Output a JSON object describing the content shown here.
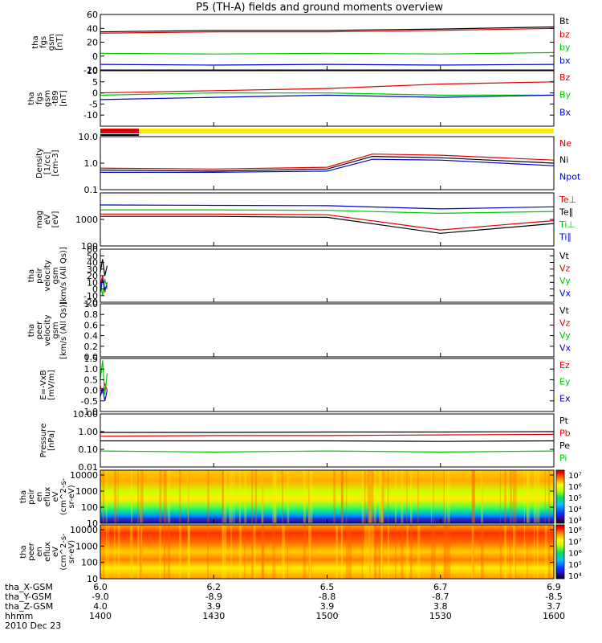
{
  "title": "P5 (TH-A) fields and ground moments overview",
  "footer": {
    "rows": [
      {
        "label": "tha_X-GSM",
        "values": [
          "6.0",
          "6.2",
          "6.5",
          "6.7",
          "6.9"
        ]
      },
      {
        "label": "tha_Y-GSM",
        "values": [
          "-9.0",
          "-8.9",
          "-8.8",
          "-8.7",
          "-8.5"
        ]
      },
      {
        "label": "tha_Z-GSM",
        "values": [
          "4.0",
          "3.9",
          "3.9",
          "3.8",
          "3.7"
        ]
      },
      {
        "label": "hhmm",
        "values": [
          "1400",
          "1430",
          "1500",
          "1530",
          "1600"
        ]
      }
    ],
    "date": "2010 Dec 23"
  },
  "colors": {
    "black": "#000000",
    "red": "#e00000",
    "green": "#00c800",
    "blue": "#0000d0",
    "yellow": "#ffee00"
  },
  "chart_data": [
    {
      "type": "line",
      "ylabel": [
        "tha",
        "fgs",
        "gsm",
        "[nT]"
      ],
      "ylim": [
        -20,
        60
      ],
      "yticks": [
        "60",
        "40",
        "20",
        "0",
        "-20"
      ],
      "legend": [
        "Bt",
        "bz",
        "by",
        "bx"
      ],
      "series": [
        {
          "name": "Bt",
          "color": "black",
          "x": [
            14.0,
            14.5,
            15.0,
            15.5,
            16.0
          ],
          "y": [
            35,
            37,
            37,
            39,
            42
          ]
        },
        {
          "name": "bz",
          "color": "red",
          "x": [
            14.0,
            14.5,
            15.0,
            15.5,
            16.0
          ],
          "y": [
            33,
            35,
            35,
            37,
            40
          ]
        },
        {
          "name": "by",
          "color": "green",
          "x": [
            14.0,
            14.5,
            15.0,
            15.5,
            16.0
          ],
          "y": [
            4,
            3,
            4,
            3,
            5
          ]
        },
        {
          "name": "bx",
          "color": "blue",
          "x": [
            14.0,
            14.5,
            15.0,
            15.5,
            16.0
          ],
          "y": [
            -12,
            -13,
            -12,
            -13,
            -12
          ]
        }
      ]
    },
    {
      "type": "line",
      "ylabel": [
        "tha",
        "fgs",
        "gsm",
        "-t89",
        "[nT]"
      ],
      "ylim": [
        -15,
        10
      ],
      "yticks": [
        "10",
        "5",
        "0",
        "-5",
        "-10"
      ],
      "legend": [
        "Bz",
        "By",
        "Bx"
      ],
      "series": [
        {
          "name": "Bz",
          "color": "red",
          "x": [
            14.0,
            14.5,
            15.0,
            15.5,
            16.0
          ],
          "y": [
            0,
            1,
            2,
            4,
            5
          ]
        },
        {
          "name": "By",
          "color": "green",
          "x": [
            14.0,
            14.5,
            15.0,
            15.5,
            16.0
          ],
          "y": [
            -1,
            0,
            0,
            -1,
            -1
          ]
        },
        {
          "name": "Bx",
          "color": "blue",
          "x": [
            14.0,
            14.5,
            15.0,
            15.5,
            16.0
          ],
          "y": [
            -3,
            -2,
            -1,
            -2,
            -1
          ]
        }
      ]
    },
    {
      "type": "line",
      "ylabel": [
        "Density",
        "[1/cc]",
        "[cm-3]"
      ],
      "yscale": "log",
      "ylim": [
        0.1,
        10
      ],
      "yticks": [
        "10.0",
        "1.0",
        "0.1"
      ],
      "legend": [
        "Ne",
        "Ni",
        "Npot"
      ],
      "series": [
        {
          "name": "Ne",
          "color": "red",
          "x": [
            14.0,
            14.5,
            15.0,
            15.2,
            15.5,
            16.0
          ],
          "y": [
            0.65,
            0.6,
            0.7,
            2.2,
            2.0,
            1.3
          ]
        },
        {
          "name": "Ni",
          "color": "black",
          "x": [
            14.0,
            14.5,
            15.0,
            15.2,
            15.5,
            16.0
          ],
          "y": [
            0.55,
            0.5,
            0.6,
            1.8,
            1.6,
            1.0
          ]
        },
        {
          "name": "Npot",
          "color": "blue",
          "x": [
            14.0,
            14.5,
            15.0,
            15.2,
            15.5,
            16.0
          ],
          "y": [
            0.45,
            0.45,
            0.5,
            1.4,
            1.3,
            0.8
          ]
        }
      ]
    },
    {
      "type": "line",
      "ylabel": [
        "mag",
        "eV",
        "[eV]"
      ],
      "yscale": "log",
      "ylim": [
        100,
        10000
      ],
      "yticks": [
        "1000",
        "100"
      ],
      "legend": [
        "Te⊥",
        "Te∥",
        "Ti⊥",
        "Ti∥"
      ],
      "series": [
        {
          "name": "Ti∥",
          "color": "blue",
          "x": [
            14.0,
            14.5,
            15.0,
            15.5,
            16.0
          ],
          "y": [
            3500,
            3400,
            3300,
            2500,
            3000
          ]
        },
        {
          "name": "Ti⊥",
          "color": "green",
          "x": [
            14.0,
            14.5,
            15.0,
            15.5,
            16.0
          ],
          "y": [
            2300,
            2300,
            2200,
            1700,
            2000
          ]
        },
        {
          "name": "Te⊥",
          "color": "red",
          "x": [
            14.0,
            14.5,
            15.0,
            15.5,
            16.0
          ],
          "y": [
            1600,
            1600,
            1500,
            400,
            900
          ]
        },
        {
          "name": "Te∥",
          "color": "black",
          "x": [
            14.0,
            14.5,
            15.0,
            15.5,
            16.0
          ],
          "y": [
            1300,
            1300,
            1200,
            300,
            700
          ]
        }
      ]
    },
    {
      "type": "line",
      "ylabel": [
        "tha",
        "peir",
        "velocity",
        "gsm",
        "[km/s (All Qs)]"
      ],
      "ylim": [
        -20,
        60
      ],
      "yticks": [
        "60",
        "50",
        "40",
        "30",
        "20",
        "10",
        "0",
        "-10",
        "-20"
      ],
      "legend": [
        "Vt",
        "Vz",
        "Vy",
        "Vx"
      ],
      "series": [
        {
          "name": "Vt",
          "color": "black",
          "x": [
            14.0,
            14.01,
            14.02,
            14.03
          ],
          "y": [
            25,
            45,
            20,
            35
          ]
        },
        {
          "name": "Vz",
          "color": "red",
          "x": [
            14.0,
            14.01,
            14.02,
            14.03
          ],
          "y": [
            5,
            20,
            -5,
            10
          ]
        },
        {
          "name": "Vy",
          "color": "green",
          "x": [
            14.0,
            14.01,
            14.02,
            14.03
          ],
          "y": [
            10,
            -10,
            15,
            0
          ]
        },
        {
          "name": "Vx",
          "color": "blue",
          "x": [
            14.0,
            14.01,
            14.02,
            14.03
          ],
          "y": [
            -5,
            15,
            0,
            5
          ]
        }
      ]
    },
    {
      "type": "line",
      "ylabel": [
        "tha",
        "peer",
        "velocity",
        "gsm",
        "[km/s (All Qs)]"
      ],
      "ylim": [
        0,
        1
      ],
      "yticks": [
        "1.0",
        "0.8",
        "0.6",
        "0.4",
        "0.2",
        "0.0"
      ],
      "legend": [
        "Vt",
        "Vz",
        "Vy",
        "Vx"
      ],
      "series": []
    },
    {
      "type": "line",
      "ylabel": [
        "E=-VxB",
        "[mV/m]"
      ],
      "ylim": [
        -1,
        1.5
      ],
      "yticks": [
        "1.5",
        "1.0",
        "0.5",
        "0.0",
        "-0.5",
        "-1.0"
      ],
      "legend": [
        "Ez",
        "Ey",
        "Ex"
      ],
      "series": [
        {
          "name": "Ez",
          "color": "red",
          "x": [
            14.0,
            14.01,
            14.02,
            14.03
          ],
          "y": [
            0.2,
            -0.1,
            0.3,
            0.0
          ]
        },
        {
          "name": "Ey",
          "color": "green",
          "x": [
            14.0,
            14.01,
            14.02,
            14.03
          ],
          "y": [
            0.5,
            1.4,
            -0.2,
            0.8
          ]
        },
        {
          "name": "Ex",
          "color": "blue",
          "x": [
            14.0,
            14.01,
            14.02,
            14.03
          ],
          "y": [
            -0.3,
            0.1,
            -0.5,
            0.0
          ]
        }
      ]
    },
    {
      "type": "line",
      "ylabel": [
        "Pressure",
        "[nPa]"
      ],
      "yscale": "log",
      "ylim": [
        0.01,
        10
      ],
      "yticks": [
        "10.00",
        "1.00",
        "0.10",
        "0.01"
      ],
      "legend": [
        "Pt",
        "Pb",
        "Pe",
        "Pi"
      ],
      "series": [
        {
          "name": "Pt",
          "color": "black",
          "x": [
            14.0,
            14.5,
            15.0,
            15.5,
            16.0
          ],
          "y": [
            0.9,
            0.9,
            0.95,
            0.95,
            1.0
          ]
        },
        {
          "name": "Pb",
          "color": "red",
          "x": [
            14.0,
            14.5,
            15.0,
            15.5,
            16.0
          ],
          "y": [
            0.55,
            0.6,
            0.6,
            0.65,
            0.7
          ]
        },
        {
          "name": "Pe",
          "color": "black",
          "x": [
            14.0,
            14.5,
            15.0,
            15.5,
            16.0
          ],
          "y": [
            0.3,
            0.3,
            0.3,
            0.28,
            0.3
          ]
        },
        {
          "name": "Pi",
          "color": "green",
          "x": [
            14.0,
            14.5,
            15.0,
            15.5,
            16.0
          ],
          "y": [
            0.08,
            0.07,
            0.08,
            0.07,
            0.08
          ]
        }
      ]
    },
    {
      "type": "heatmap",
      "ylabel": [
        "tha",
        "peir",
        "en",
        "eflux",
        "eV",
        "(cm^2-s-",
        "sr-eV)"
      ],
      "yscale": "log",
      "ylim": [
        10,
        20000
      ],
      "yticks": [
        "10000",
        "1000",
        "100",
        "10"
      ],
      "colorbar_ticks": [
        "10⁷",
        "10⁶",
        "10⁵",
        "10⁴",
        "10³"
      ]
    },
    {
      "type": "heatmap",
      "ylabel": [
        "tha",
        "peer",
        "en",
        "eflux",
        "eV",
        "(cm^2-s-",
        "sr-eV)"
      ],
      "yscale": "log",
      "ylim": [
        10,
        20000
      ],
      "yticks": [
        "10000",
        "1000",
        "100",
        "10"
      ],
      "colorbar_ticks": [
        "10⁸",
        "10⁷",
        "10⁶",
        "10⁵",
        "10⁴"
      ]
    }
  ]
}
